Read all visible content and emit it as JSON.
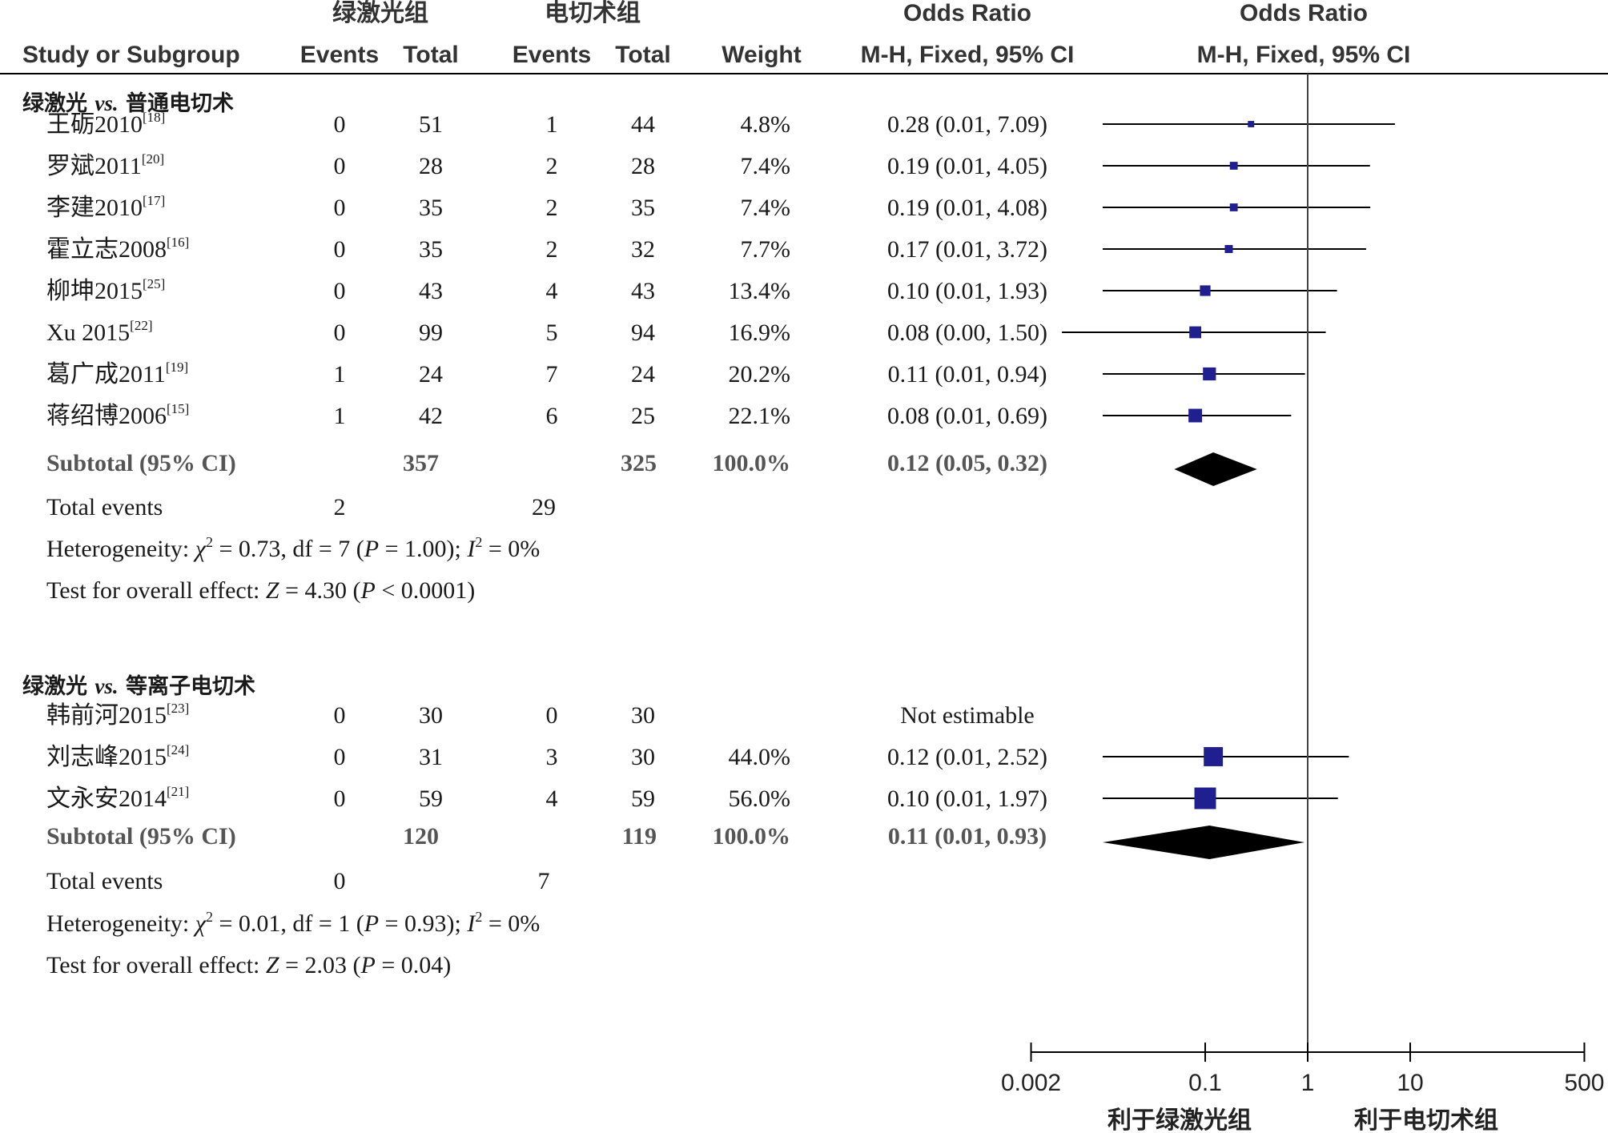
{
  "chart_data": {
    "type": "forest",
    "header_groups": {
      "experimental": "绿激光组",
      "control": "电切术组",
      "or_left": "Odds Ratio",
      "or_right": "Odds Ratio"
    },
    "columns": {
      "study": "Study or Subgroup",
      "exp_events": "Events",
      "exp_total": "Total",
      "ctl_events": "Events",
      "ctl_total": "Total",
      "weight": "Weight",
      "or_method": "M-H, Fixed, 95% CI",
      "plot_method": "M-H, Fixed, 95% CI"
    },
    "x_axis": {
      "scale": "log",
      "range": [
        0.002,
        500
      ],
      "ticks": [
        "0.002",
        "0.1",
        "1",
        "10",
        "500"
      ],
      "favours_left": "利于绿激光组",
      "favours_right": "利于电切术组"
    },
    "groups": [
      {
        "title_pre": "绿激光",
        "title_vs": "vs.",
        "title_post": "普通电切术",
        "studies": [
          {
            "name": "王砺2010",
            "ref": "[18]",
            "e1": "0",
            "n1": "51",
            "e2": "1",
            "n2": "44",
            "weight": "4.8%",
            "or_text": "0.28 (0.01, 7.09)",
            "or": 0.28,
            "lo": 0.01,
            "hi": 7.09,
            "w": 4.8
          },
          {
            "name": "罗斌2011",
            "ref": "[20]",
            "e1": "0",
            "n1": "28",
            "e2": "2",
            "n2": "28",
            "weight": "7.4%",
            "or_text": "0.19 (0.01, 4.05)",
            "or": 0.19,
            "lo": 0.01,
            "hi": 4.05,
            "w": 7.4
          },
          {
            "name": "李建2010",
            "ref": "[17]",
            "e1": "0",
            "n1": "35",
            "e2": "2",
            "n2": "35",
            "weight": "7.4%",
            "or_text": "0.19 (0.01, 4.08)",
            "or": 0.19,
            "lo": 0.01,
            "hi": 4.08,
            "w": 7.4
          },
          {
            "name": "霍立志2008",
            "ref": "[16]",
            "e1": "0",
            "n1": "35",
            "e2": "2",
            "n2": "32",
            "weight": "7.7%",
            "or_text": "0.17 (0.01, 3.72)",
            "or": 0.17,
            "lo": 0.01,
            "hi": 3.72,
            "w": 7.7
          },
          {
            "name": "柳坤2015",
            "ref": "[25]",
            "e1": "0",
            "n1": "43",
            "e2": "4",
            "n2": "43",
            "weight": "13.4%",
            "or_text": "0.10 (0.01, 1.93)",
            "or": 0.1,
            "lo": 0.01,
            "hi": 1.93,
            "w": 13.4
          },
          {
            "name": "Xu 2015",
            "ref": "[22]",
            "e1": "0",
            "n1": "99",
            "e2": "5",
            "n2": "94",
            "weight": "16.9%",
            "or_text": "0.08 (0.00, 1.50)",
            "or": 0.08,
            "lo": 0.004,
            "hi": 1.5,
            "w": 16.9
          },
          {
            "name": "葛广成2011",
            "ref": "[19]",
            "e1": "1",
            "n1": "24",
            "e2": "7",
            "n2": "24",
            "weight": "20.2%",
            "or_text": "0.11 (0.01, 0.94)",
            "or": 0.11,
            "lo": 0.01,
            "hi": 0.94,
            "w": 20.2
          },
          {
            "name": "蒋绍博2006",
            "ref": "[15]",
            "e1": "1",
            "n1": "42",
            "e2": "6",
            "n2": "25",
            "weight": "22.1%",
            "or_text": "0.08 (0.01, 0.69)",
            "or": 0.08,
            "lo": 0.01,
            "hi": 0.69,
            "w": 22.1
          }
        ],
        "subtotal": {
          "label": "Subtotal (95% CI)",
          "n1": "357",
          "n2": "325",
          "weight": "100.0%",
          "or_text": "0.12 (0.05, 0.32)",
          "or": 0.12,
          "lo": 0.05,
          "hi": 0.32
        },
        "total_events": {
          "label": "Total events",
          "e1": "2",
          "e2": "29"
        },
        "heterogeneity": {
          "label": "Heterogeneity: ",
          "chi2": "0.73",
          "df": "7",
          "p": "1.00",
          "i2": "0%"
        },
        "overall": {
          "label": "Test for overall effect: ",
          "z": "4.30",
          "p_op": "<",
          "p": "0.0001"
        }
      },
      {
        "title_pre": "绿激光",
        "title_vs": "vs.",
        "title_post": "等离子电切术",
        "studies": [
          {
            "name": "韩前河2015",
            "ref": "[23]",
            "e1": "0",
            "n1": "30",
            "e2": "0",
            "n2": "30",
            "weight": "",
            "or_text": "Not estimable",
            "or": null,
            "lo": null,
            "hi": null,
            "w": 0
          },
          {
            "name": "刘志峰2015",
            "ref": "[24]",
            "e1": "0",
            "n1": "31",
            "e2": "3",
            "n2": "30",
            "weight": "44.0%",
            "or_text": "0.12 (0.01, 2.52)",
            "or": 0.12,
            "lo": 0.01,
            "hi": 2.52,
            "w": 44.0
          },
          {
            "name": "文永安2014",
            "ref": "[21]",
            "e1": "0",
            "n1": "59",
            "e2": "4",
            "n2": "59",
            "weight": "56.0%",
            "or_text": "0.10 (0.01, 1.97)",
            "or": 0.1,
            "lo": 0.01,
            "hi": 1.97,
            "w": 56.0
          }
        ],
        "subtotal": {
          "label": "Subtotal (95% CI)",
          "n1": "120",
          "n2": "119",
          "weight": "100.0%",
          "or_text": "0.11 (0.01, 0.93)",
          "or": 0.11,
          "lo": 0.01,
          "hi": 0.93
        },
        "total_events": {
          "label": "Total events",
          "e1": "0",
          "e2": "7"
        },
        "heterogeneity": {
          "label": "Heterogeneity: ",
          "chi2": "0.01",
          "df": "1",
          "p": "0.93",
          "i2": "0%"
        },
        "overall": {
          "label": "Test for overall effect: ",
          "z": "2.03",
          "p_op": "=",
          "p": "0.04"
        }
      }
    ],
    "colors": {
      "marker": "#1f1f8f",
      "diamond": "#000000",
      "line": "#000000"
    }
  }
}
